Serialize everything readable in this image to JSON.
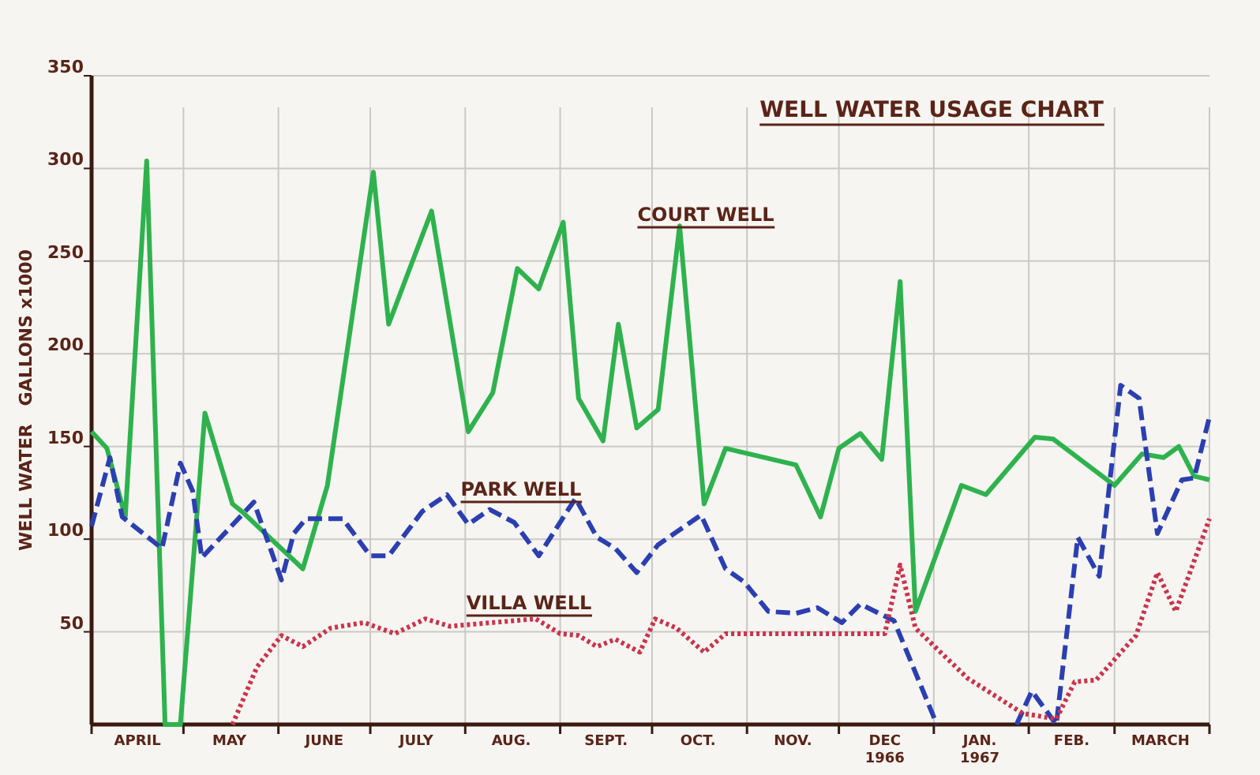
{
  "chart_data": {
    "type": "line",
    "title": "WELL WATER USAGE CHART",
    "ylabel": "WELL WATER   GALLONS x1000",
    "xlim": [
      "1966-04-01",
      "1967-04-01"
    ],
    "xticks": [
      {
        "value": "1966-04-01",
        "label": null
      },
      {
        "value": "1966-04-16",
        "label": "APRIL"
      },
      {
        "value": "1966-05-01",
        "label": null
      },
      {
        "value": "1966-05-16",
        "label": "MAY"
      },
      {
        "value": "1966-06-01",
        "label": null
      },
      {
        "value": "1966-06-16",
        "label": "JUNE"
      },
      {
        "value": "1966-07-01",
        "label": null
      },
      {
        "value": "1966-07-16",
        "label": "JULY"
      },
      {
        "value": "1966-08-01",
        "label": null
      },
      {
        "value": "1966-08-16",
        "label": "AUG."
      },
      {
        "value": "1966-09-01",
        "label": null
      },
      {
        "value": "1966-09-16",
        "label": "SEPT."
      },
      {
        "value": "1966-10-01",
        "label": null
      },
      {
        "value": "1966-10-16",
        "label": "OCT."
      },
      {
        "value": "1966-11-01",
        "label": null
      },
      {
        "value": "1966-11-16",
        "label": "NOV."
      },
      {
        "value": "1966-12-01",
        "label": null
      },
      {
        "value": "1966-12-16",
        "label": "DEC\n1966"
      },
      {
        "value": "1967-01-01",
        "label": null
      },
      {
        "value": "1967-01-16",
        "label": "JAN.\n1967"
      },
      {
        "value": "1967-02-01",
        "label": null
      },
      {
        "value": "1967-02-15",
        "label": "FEB."
      },
      {
        "value": "1967-03-01",
        "label": null
      },
      {
        "value": "1967-03-16",
        "label": "MARCH"
      },
      {
        "value": "1967-04-01",
        "label": null
      }
    ],
    "ylim": [
      0,
      350
    ],
    "yticks": [
      50,
      100,
      150,
      200,
      250,
      300,
      350
    ],
    "grid": true,
    "series": [
      {
        "name": "COURT WELL",
        "color": "#2fb24e",
        "line_style": "solid",
        "x": [
          "1966-04-01",
          "1966-04-06",
          "1966-04-12",
          "1966-04-19",
          "1966-04-25",
          "1966-04-30",
          "1966-05-08",
          "1966-05-17",
          "1966-05-20",
          "1966-06-09",
          "1966-06-17",
          "1966-07-02",
          "1966-07-07",
          "1966-07-21",
          "1966-08-02",
          "1966-08-10",
          "1966-08-18",
          "1966-08-25",
          "1966-09-02",
          "1966-09-07",
          "1966-09-15",
          "1966-09-20",
          "1966-09-26",
          "1966-10-03",
          "1966-10-10",
          "1966-10-18",
          "1966-10-25",
          "1966-11-17",
          "1966-11-25",
          "1966-12-01",
          "1966-12-08",
          "1966-12-15",
          "1966-12-21",
          "1966-12-26",
          "1967-01-10",
          "1967-01-18",
          "1967-02-03",
          "1967-02-09",
          "1967-03-01",
          "1967-03-10",
          "1967-03-17",
          "1967-03-22",
          "1967-03-27",
          "1967-04-01"
        ],
        "values": [
          158,
          149,
          112,
          304,
          0,
          0,
          168,
          119,
          115,
          84,
          129,
          298,
          216,
          277,
          158,
          179,
          246,
          235,
          271,
          176,
          153,
          216,
          160,
          170,
          269,
          119,
          149,
          140,
          112,
          149,
          157,
          143,
          239,
          61,
          129,
          124,
          155,
          154,
          129,
          146,
          144,
          150,
          134,
          132
        ]
      },
      {
        "name": "PARK WELL",
        "color": "#2c3fb0",
        "line_style": "dashed",
        "x": [
          "1966-04-01",
          "1966-04-07",
          "1966-04-11",
          "1966-04-24",
          "1966-04-30",
          "1966-05-04",
          "1966-05-07",
          "1966-05-24",
          "1966-06-02",
          "1966-06-06",
          "1966-06-10",
          "1966-06-22",
          "1966-07-01",
          "1966-07-07",
          "1966-07-18",
          "1966-07-26",
          "1966-08-02",
          "1966-08-09",
          "1966-08-17",
          "1966-08-25",
          "1966-09-06",
          "1966-09-13",
          "1966-09-19",
          "1966-09-26",
          "1966-10-03",
          "1966-10-17",
          "1966-10-25",
          "1966-10-31",
          "1966-11-08",
          "1966-11-17",
          "1966-11-24",
          "1966-12-02",
          "1966-12-08",
          "1966-12-19",
          "1967-01-02",
          "1967-01-13",
          "1967-01-28",
          "1967-02-02",
          "1967-02-10",
          "1967-02-17",
          "1967-02-24",
          "1967-03-03",
          "1967-03-09",
          "1967-03-15",
          "1967-03-23",
          "1967-03-27",
          "1967-04-01"
        ],
        "values": [
          107,
          144,
          112,
          95,
          141,
          126,
          90,
          120,
          78,
          103,
          111,
          111,
          91,
          91,
          115,
          124,
          108,
          116,
          109,
          91,
          122,
          101,
          95,
          82,
          97,
          113,
          84,
          77,
          61,
          60,
          63,
          55,
          65,
          56,
          0,
          null,
          0,
          18,
          0,
          101,
          80,
          183,
          176,
          103,
          132,
          133,
          166
        ]
      },
      {
        "name": "VILLA WELL",
        "color": "#c9344c",
        "line_style": "dotted",
        "x": [
          "1966-05-17",
          "1966-05-25",
          "1966-06-02",
          "1966-06-09",
          "1966-06-18",
          "1966-06-29",
          "1966-07-09",
          "1966-07-19",
          "1966-07-27",
          "1966-08-24",
          "1966-09-01",
          "1966-09-07",
          "1966-09-13",
          "1966-09-19",
          "1966-09-27",
          "1966-10-02",
          "1966-10-09",
          "1966-10-18",
          "1966-10-25",
          "1966-12-01",
          "1966-12-16",
          "1966-12-21",
          "1966-12-26",
          "1967-01-12",
          "1967-01-30",
          "1967-02-10",
          "1967-02-16",
          "1967-02-23",
          "1967-03-08",
          "1967-03-15",
          "1967-03-21",
          "1967-04-01"
        ],
        "values": [
          0,
          31,
          48,
          42,
          52,
          55,
          49,
          57,
          53,
          57,
          49,
          48,
          42,
          46,
          39,
          57,
          52,
          39,
          49,
          49,
          49,
          86,
          52,
          25,
          6,
          3,
          23,
          24,
          48,
          82,
          61,
          111
        ]
      }
    ]
  }
}
